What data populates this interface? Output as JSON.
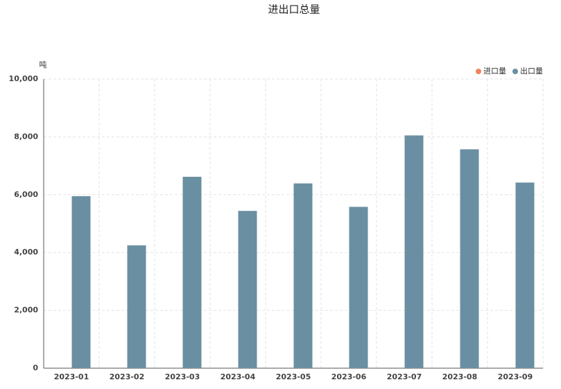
{
  "chart_data": {
    "type": "bar",
    "title": "进出口总量",
    "y_label": "吨",
    "categories": [
      "2023-01",
      "2023-02",
      "2023-03",
      "2023-04",
      "2023-05",
      "2023-06",
      "2023-07",
      "2023-08",
      "2023-09"
    ],
    "series": [
      {
        "name": "进口量",
        "color": "#f0845c",
        "values": [
          null,
          null,
          null,
          null,
          null,
          null,
          null,
          null,
          null
        ]
      },
      {
        "name": "出口量",
        "color": "#6a8fa3",
        "values": [
          5950,
          4250,
          6620,
          5440,
          6390,
          5580,
          8050,
          7570,
          6420
        ]
      }
    ],
    "ylim": [
      0,
      10000
    ],
    "yticks": [
      0,
      {
        "value": 2000,
        "label": "2,000"
      },
      {
        "value": 4000,
        "label": "4,000"
      },
      {
        "value": 6000,
        "label": "6,000"
      },
      {
        "value": 8000,
        "label": "8,000"
      },
      {
        "value": 10000,
        "label": "10,000"
      }
    ],
    "grid": true,
    "legend": "top-right"
  }
}
